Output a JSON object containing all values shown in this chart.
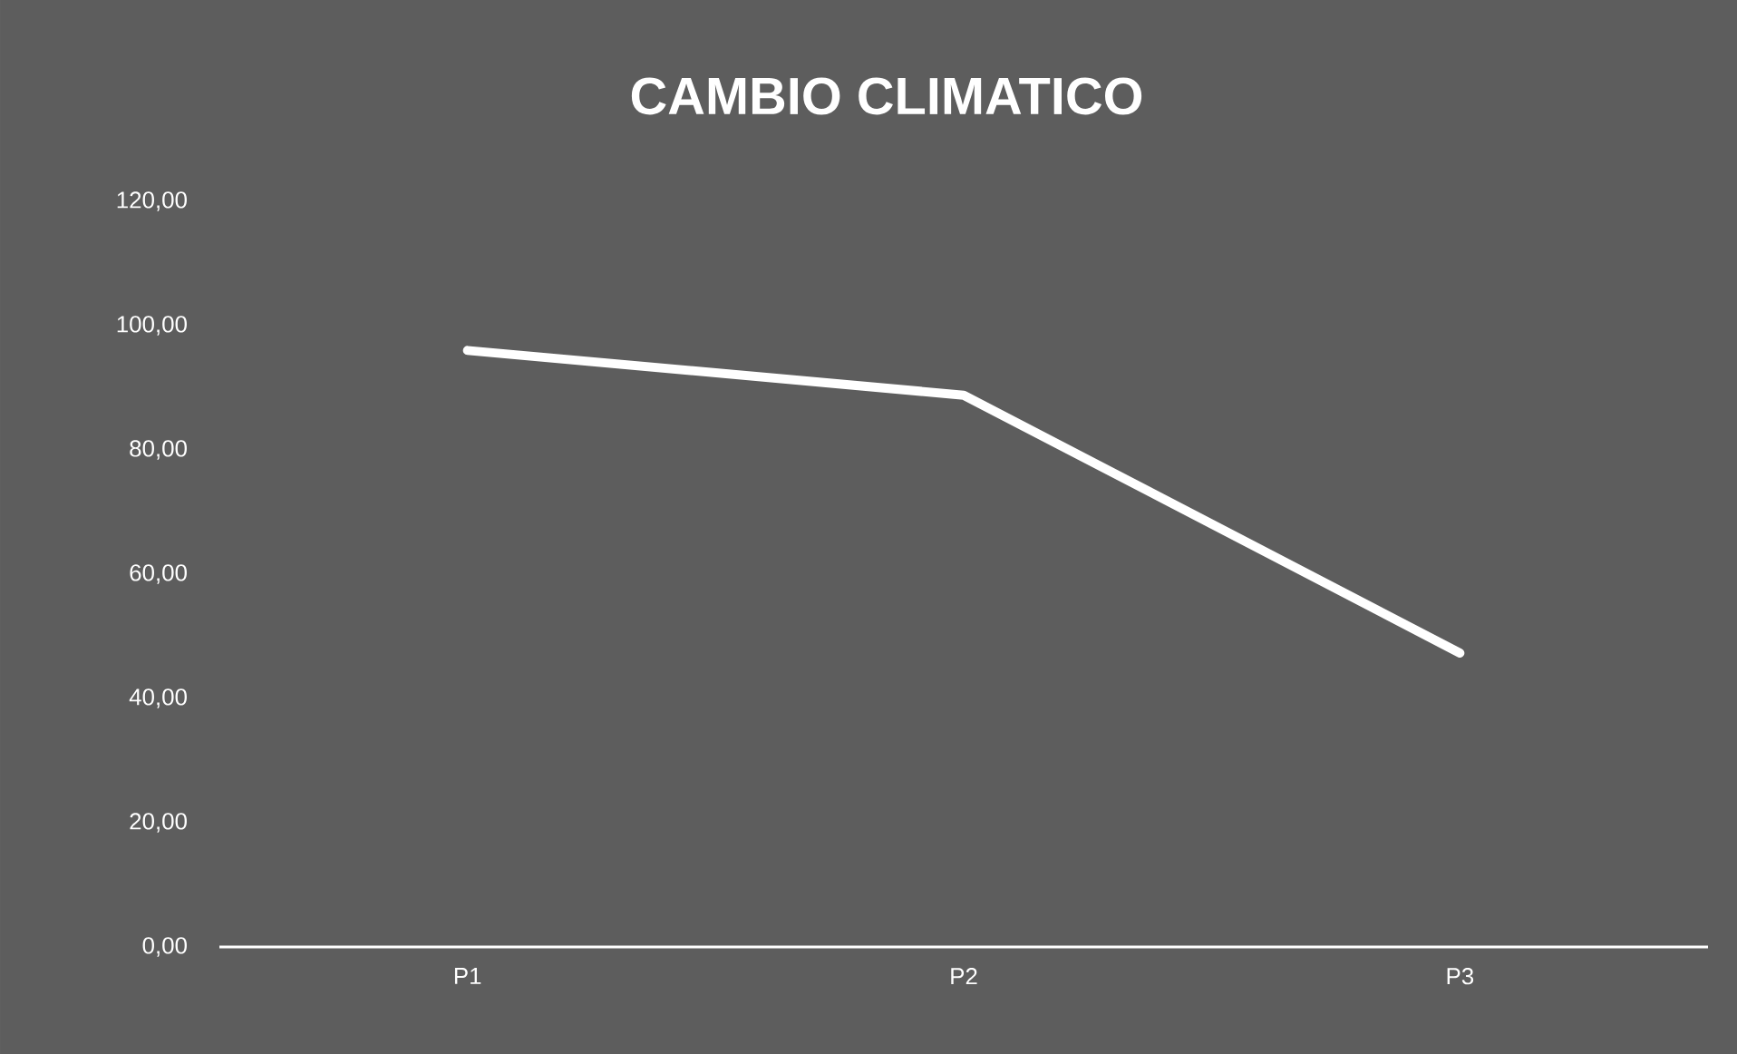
{
  "chart_data": {
    "type": "line",
    "title": "CAMBIO CLIMATICO",
    "categories": [
      "P1",
      "P2",
      "P3"
    ],
    "series": [
      {
        "color": "#ffffff",
        "values": [
          96.0,
          88.8,
          47.3
        ]
      }
    ],
    "ylim": [
      0,
      120
    ],
    "yticks": [
      {
        "value": 0,
        "label": "0,00"
      },
      {
        "value": 20,
        "label": "20,00"
      },
      {
        "value": 40,
        "label": "40,00"
      },
      {
        "value": 60,
        "label": "60,00"
      },
      {
        "value": 80,
        "label": "80,00"
      },
      {
        "value": 100,
        "label": "100,00"
      },
      {
        "value": 120,
        "label": "120,00"
      }
    ],
    "grid": false,
    "marker": "none",
    "line_style": "solid"
  }
}
